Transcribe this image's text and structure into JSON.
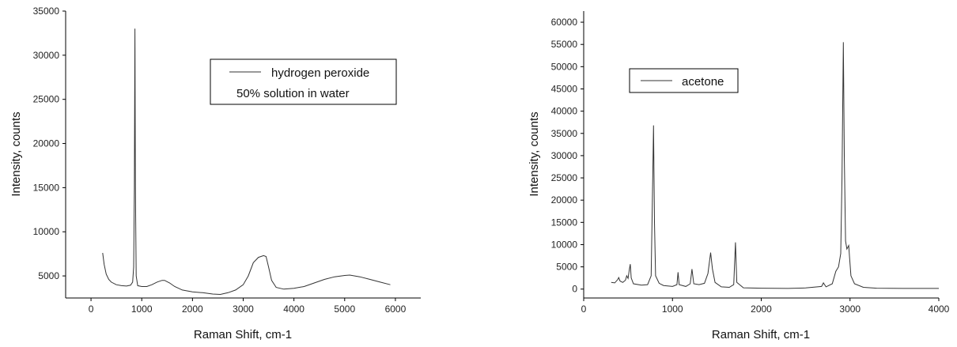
{
  "chart_data": [
    {
      "type": "line",
      "xlabel": "Raman Shift, cm-1",
      "ylabel": "Intensity, counts",
      "xlim": [
        -500,
        6500
      ],
      "ylim": [
        2500,
        35000
      ],
      "xticks": [
        0,
        1000,
        2000,
        3000,
        4000,
        5000,
        6000
      ],
      "yticks": [
        5000,
        10000,
        15000,
        20000,
        25000,
        30000,
        35000
      ],
      "grid": false,
      "legend_position": "top-right",
      "series": [
        {
          "name": "hydrogen peroxide",
          "name_line2": "50% solution in water",
          "color": "#333333",
          "points": [
            [
              230,
              7600
            ],
            [
              260,
              6300
            ],
            [
              300,
              5200
            ],
            [
              350,
              4600
            ],
            [
              400,
              4300
            ],
            [
              500,
              4000
            ],
            [
              600,
              3900
            ],
            [
              700,
              3850
            ],
            [
              780,
              3950
            ],
            [
              820,
              4300
            ],
            [
              840,
              6000
            ],
            [
              855,
              15000
            ],
            [
              865,
              33000
            ],
            [
              875,
              15000
            ],
            [
              890,
              5000
            ],
            [
              920,
              3900
            ],
            [
              1000,
              3800
            ],
            [
              1100,
              3800
            ],
            [
              1200,
              4000
            ],
            [
              1300,
              4300
            ],
            [
              1400,
              4500
            ],
            [
              1450,
              4500
            ],
            [
              1550,
              4200
            ],
            [
              1650,
              3800
            ],
            [
              1800,
              3400
            ],
            [
              2000,
              3200
            ],
            [
              2200,
              3100
            ],
            [
              2400,
              2950
            ],
            [
              2550,
              2900
            ],
            [
              2700,
              3100
            ],
            [
              2850,
              3400
            ],
            [
              3000,
              4000
            ],
            [
              3100,
              5000
            ],
            [
              3200,
              6500
            ],
            [
              3300,
              7100
            ],
            [
              3400,
              7300
            ],
            [
              3450,
              7200
            ],
            [
              3500,
              6000
            ],
            [
              3560,
              4500
            ],
            [
              3650,
              3700
            ],
            [
              3800,
              3500
            ],
            [
              4000,
              3600
            ],
            [
              4200,
              3800
            ],
            [
              4400,
              4200
            ],
            [
              4600,
              4600
            ],
            [
              4800,
              4900
            ],
            [
              5000,
              5050
            ],
            [
              5100,
              5100
            ],
            [
              5300,
              4900
            ],
            [
              5500,
              4600
            ],
            [
              5700,
              4300
            ],
            [
              5900,
              4000
            ]
          ]
        }
      ]
    },
    {
      "type": "line",
      "xlabel": "Raman Shift, cm-1",
      "ylabel": "Intensity, counts",
      "xlim": [
        0,
        4000
      ],
      "ylim": [
        -2000,
        62500
      ],
      "xticks": [
        0,
        1000,
        2000,
        3000,
        4000
      ],
      "yticks": [
        0,
        5000,
        10000,
        15000,
        20000,
        25000,
        30000,
        35000,
        40000,
        45000,
        50000,
        55000,
        60000
      ],
      "grid": false,
      "legend_position": "top-left",
      "series": [
        {
          "name": "acetone",
          "color": "#333333",
          "points": [
            [
              310,
              1500
            ],
            [
              350,
              1400
            ],
            [
              385,
              2200
            ],
            [
              395,
              2600
            ],
            [
              410,
              1800
            ],
            [
              440,
              1500
            ],
            [
              470,
              2000
            ],
            [
              485,
              3000
            ],
            [
              500,
              2400
            ],
            [
              515,
              4500
            ],
            [
              525,
              5600
            ],
            [
              535,
              2500
            ],
            [
              560,
              1200
            ],
            [
              650,
              900
            ],
            [
              720,
              1000
            ],
            [
              760,
              3000
            ],
            [
              778,
              25000
            ],
            [
              787,
              36800
            ],
            [
              797,
              15000
            ],
            [
              810,
              3000
            ],
            [
              850,
              1300
            ],
            [
              900,
              800
            ],
            [
              1000,
              600
            ],
            [
              1050,
              1000
            ],
            [
              1063,
              3800
            ],
            [
              1075,
              1000
            ],
            [
              1150,
              600
            ],
            [
              1200,
              1200
            ],
            [
              1220,
              4500
            ],
            [
              1240,
              1200
            ],
            [
              1300,
              1000
            ],
            [
              1360,
              1300
            ],
            [
              1400,
              3500
            ],
            [
              1430,
              8200
            ],
            [
              1450,
              4500
            ],
            [
              1480,
              1500
            ],
            [
              1550,
              500
            ],
            [
              1640,
              400
            ],
            [
              1690,
              1000
            ],
            [
              1710,
              10500
            ],
            [
              1725,
              1500
            ],
            [
              1800,
              300
            ],
            [
              2000,
              200
            ],
            [
              2300,
              150
            ],
            [
              2500,
              250
            ],
            [
              2680,
              600
            ],
            [
              2700,
              1400
            ],
            [
              2730,
              500
            ],
            [
              2800,
              1200
            ],
            [
              2840,
              4000
            ],
            [
              2870,
              5000
            ],
            [
              2895,
              8000
            ],
            [
              2910,
              25000
            ],
            [
              2925,
              55500
            ],
            [
              2935,
              30000
            ],
            [
              2950,
              10800
            ],
            [
              2965,
              9000
            ],
            [
              2985,
              9800
            ],
            [
              2995,
              7000
            ],
            [
              3010,
              3000
            ],
            [
              3050,
              1200
            ],
            [
              3150,
              400
            ],
            [
              3300,
              200
            ],
            [
              3600,
              150
            ],
            [
              4000,
              150
            ]
          ]
        }
      ]
    }
  ]
}
